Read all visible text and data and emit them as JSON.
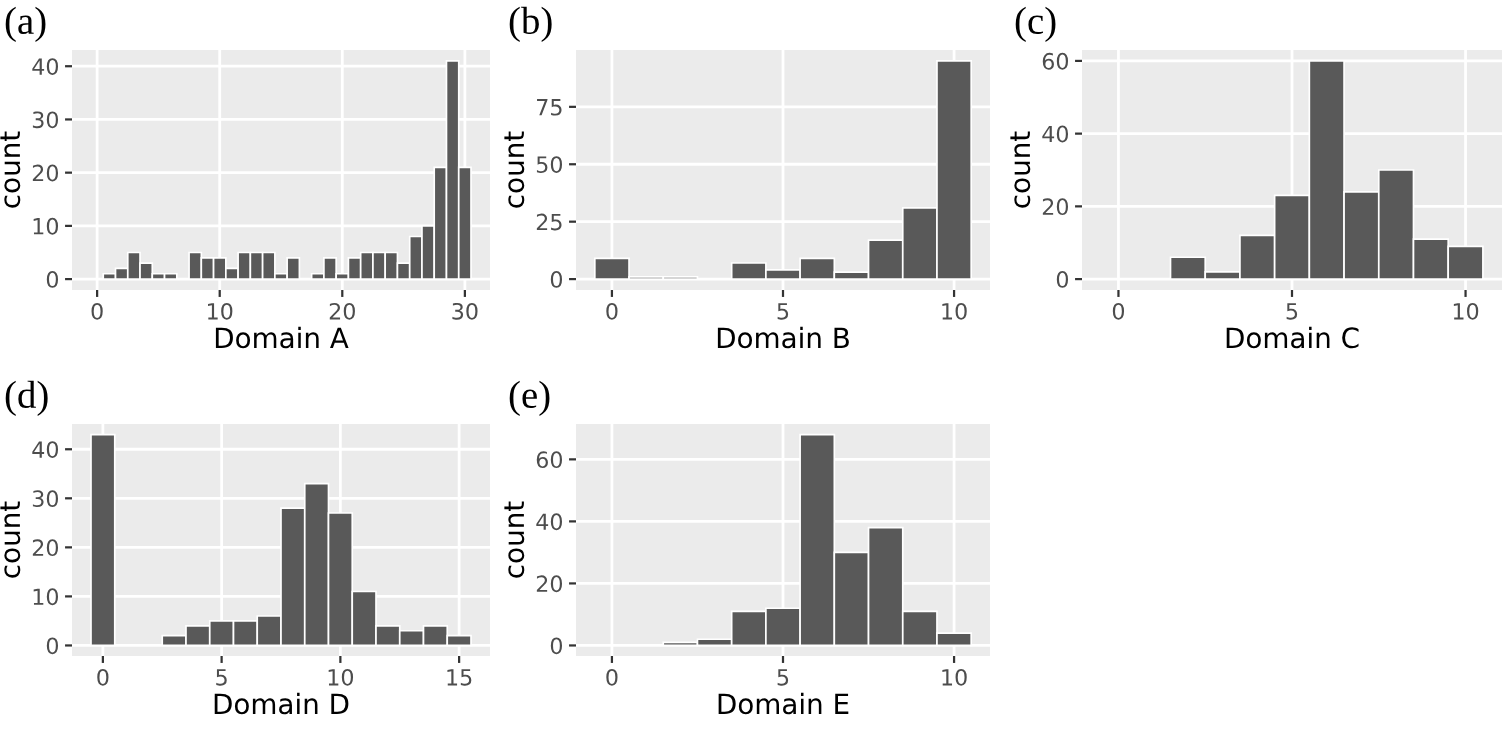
{
  "chart_data": [
    {
      "type": "histogram",
      "title": "(a)",
      "xlabel": "Domain A",
      "ylabel": "count",
      "color": "#595959",
      "grid": true,
      "bins": [
        -0.5,
        0.5,
        1.5,
        2.5,
        3.5,
        4.5,
        5.5,
        6.5,
        7.5,
        8.5,
        9.5,
        10.5,
        11.5,
        12.5,
        13.5,
        14.5,
        15.5,
        16.5,
        17.5,
        18.5,
        19.5,
        20.5,
        21.5,
        22.5,
        23.5,
        24.5,
        25.5,
        26.5,
        27.5,
        28.5,
        29.5,
        30.5
      ],
      "values": [
        0,
        1,
        2,
        5,
        3,
        1,
        1,
        0,
        5,
        4,
        4,
        2,
        5,
        5,
        5,
        1,
        4,
        0,
        1,
        4,
        1,
        4,
        5,
        5,
        5,
        3,
        8,
        10,
        21,
        41,
        21
      ],
      "xlim": [
        -2.05,
        32.05
      ],
      "xticks": [
        0,
        10,
        20,
        30
      ],
      "ylim": [
        -2.05,
        43.05
      ],
      "yticks": [
        0,
        10,
        20,
        30,
        40
      ]
    },
    {
      "type": "histogram",
      "title": "(b)",
      "xlabel": "Domain B",
      "ylabel": "count",
      "color": "#595959",
      "grid": true,
      "bins": [
        -0.5,
        0.5,
        1.5,
        2.5,
        3.5,
        4.5,
        5.5,
        6.5,
        7.5,
        8.5,
        9.5,
        10.5
      ],
      "values": [
        9,
        1,
        1,
        0,
        7,
        4,
        9,
        3,
        17,
        31,
        95
      ],
      "xlim": [
        -1.05,
        11.05
      ],
      "xticks": [
        0,
        5,
        10
      ],
      "ylim": [
        -4.75,
        99.75
      ],
      "yticks": [
        0,
        25,
        50,
        75
      ]
    },
    {
      "type": "histogram",
      "title": "(c)",
      "xlabel": "Domain C",
      "ylabel": "count",
      "color": "#595959",
      "grid": true,
      "bins": [
        -0.5,
        0.5,
        1.5,
        2.5,
        3.5,
        4.5,
        5.5,
        6.5,
        7.5,
        8.5,
        9.5,
        10.5
      ],
      "values": [
        0,
        0,
        6,
        2,
        12,
        23,
        60,
        24,
        30,
        11,
        9
      ],
      "xlim": [
        -1.05,
        11.05
      ],
      "xticks": [
        0,
        5,
        10
      ],
      "ylim": [
        -3,
        63
      ],
      "yticks": [
        0,
        20,
        40,
        60
      ]
    },
    {
      "type": "histogram",
      "title": "(d)",
      "xlabel": "Domain D",
      "ylabel": "count",
      "color": "#595959",
      "grid": true,
      "bins": [
        -0.5,
        0.5,
        1.5,
        2.5,
        3.5,
        4.5,
        5.5,
        6.5,
        7.5,
        8.5,
        9.5,
        10.5,
        11.5,
        12.5,
        13.5,
        14.5,
        15.5
      ],
      "values": [
        43,
        0,
        0,
        2,
        4,
        5,
        5,
        6,
        28,
        33,
        27,
        11,
        4,
        3,
        4,
        2
      ],
      "xlim": [
        -1.3,
        16.3
      ],
      "xticks": [
        0,
        5,
        10,
        15
      ],
      "ylim": [
        -2.15,
        45.15
      ],
      "yticks": [
        0,
        10,
        20,
        30,
        40
      ]
    },
    {
      "type": "histogram",
      "title": "(e)",
      "xlabel": "Domain E",
      "ylabel": "count",
      "color": "#595959",
      "grid": true,
      "bins": [
        -0.5,
        0.5,
        1.5,
        2.5,
        3.5,
        4.5,
        5.5,
        6.5,
        7.5,
        8.5,
        9.5,
        10.5
      ],
      "values": [
        0,
        0,
        1,
        2,
        11,
        12,
        68,
        30,
        38,
        11,
        4
      ],
      "xlim": [
        -1.05,
        11.05
      ],
      "xticks": [
        0,
        5,
        10
      ],
      "ylim": [
        -3.4,
        71.4
      ],
      "yticks": [
        0,
        20,
        40,
        60
      ]
    }
  ]
}
